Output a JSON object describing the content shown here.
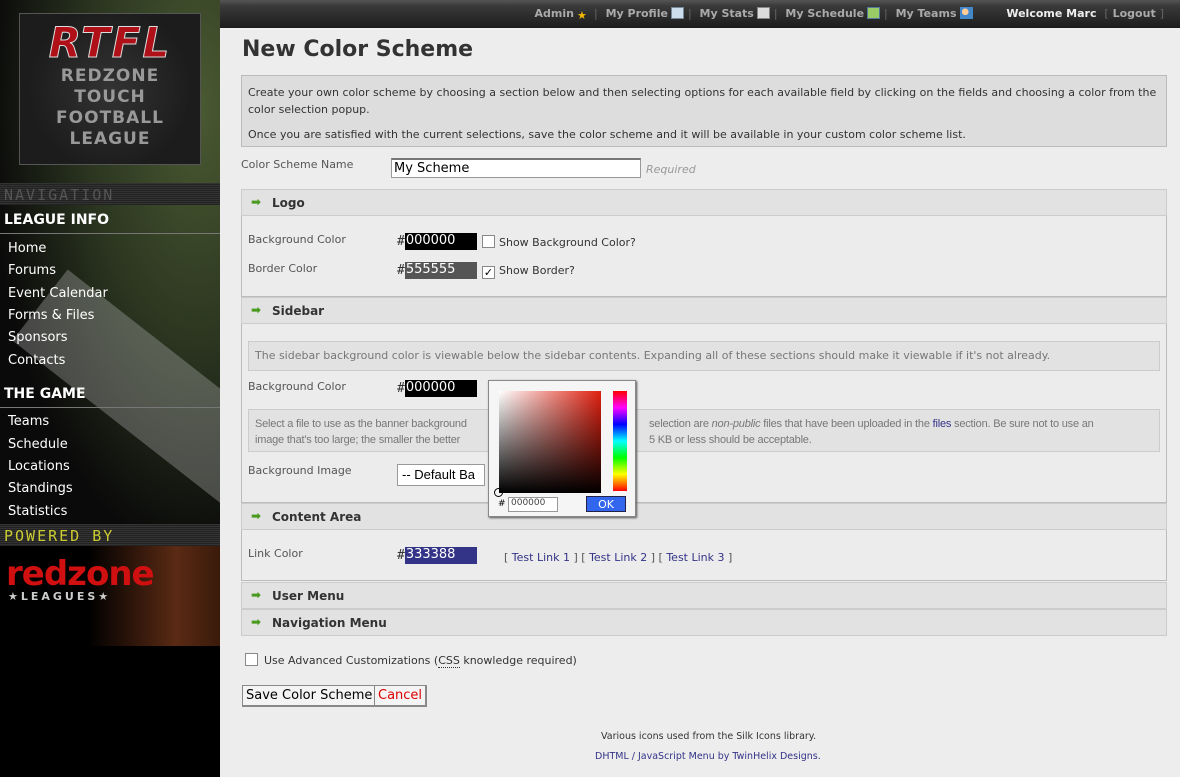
{
  "sidebar": {
    "logo": {
      "abbr": "RTFL",
      "lines": [
        "REDZONE",
        "TOUCH",
        "FOOTBALL",
        "LEAGUE"
      ]
    },
    "navigation_band": "NAVIGATION",
    "league_info": {
      "title": "LEAGUE INFO",
      "items": [
        "Home",
        "Forums",
        "Event Calendar",
        "Forms & Files",
        "Sponsors",
        "Contacts"
      ]
    },
    "the_game": {
      "title": "THE GAME",
      "items": [
        "Teams",
        "Schedule",
        "Locations",
        "Standings",
        "Statistics"
      ]
    },
    "powered_band": "POWERED BY",
    "powered_logo": {
      "name": "redzone",
      "sub": "★LEAGUES★"
    }
  },
  "topbar": {
    "links": [
      "Admin",
      "My Profile",
      "My Stats",
      "My Schedule",
      "My Teams"
    ],
    "welcome": "Welcome Marc",
    "logout": "Logout"
  },
  "page": {
    "title": "New Color Scheme",
    "intro": [
      "Create your own color scheme by choosing a section below and then selecting options for each available field by clicking on the fields and choosing a color from the color selection popup.",
      "Once you are satisfied with the current selections, save the color scheme and it will be available in your custom color scheme list."
    ],
    "name_label": "Color Scheme Name",
    "name_value": "My Scheme",
    "required": "Required",
    "logo": {
      "title": "Logo",
      "bg_label": "Background Color",
      "bg_value": "000000",
      "bg_color": "#000000",
      "show_bg": "Show Background Color?",
      "show_bg_checked": false,
      "border_label": "Border Color",
      "border_value": "555555",
      "border_color": "#555555",
      "show_border": "Show Border?",
      "show_border_checked": true
    },
    "sidebar": {
      "title": "Sidebar",
      "note": "The sidebar background color is viewable below the sidebar contents. Expanding all of these sections should make it viewable if it's not already.",
      "bg_label": "Background Color",
      "bg_value": "000000",
      "bg_color": "#000000",
      "image_note_a": "Select a file to use as the banner background",
      "image_note_b": "selection are ",
      "image_note_em": "non-public",
      "image_note_c": " files that have been uploaded in the ",
      "image_note_link": "files",
      "image_note_d": " section. Be sure not to use an",
      "image_note_e": "image that's too large; the smaller the better",
      "image_note_f": "5 KB or less should be acceptable.",
      "image_label": "Background Image",
      "image_value": "-- Default Ba"
    },
    "content_area": {
      "title": "Content Area",
      "link_label": "Link Color",
      "link_value": "333388",
      "link_color": "#333388",
      "test_links": [
        "Test Link 1",
        "Test Link 2",
        "Test Link 3"
      ]
    },
    "user_menu": {
      "title": "User Menu"
    },
    "navigation_menu": {
      "title": "Navigation Menu"
    },
    "advanced": {
      "pre": "Use Advanced Customizations (",
      "abbr": "CSS",
      "post": " knowledge required)",
      "checked": false
    },
    "save": "Save Color Scheme",
    "cancel": "Cancel",
    "footer": [
      "Various icons used from the Silk Icons library.",
      "DHTML / JavaScript Menu by TwinHelix Designs."
    ]
  },
  "color_picker": {
    "hash": "#",
    "value": "000000",
    "ok": "OK"
  }
}
